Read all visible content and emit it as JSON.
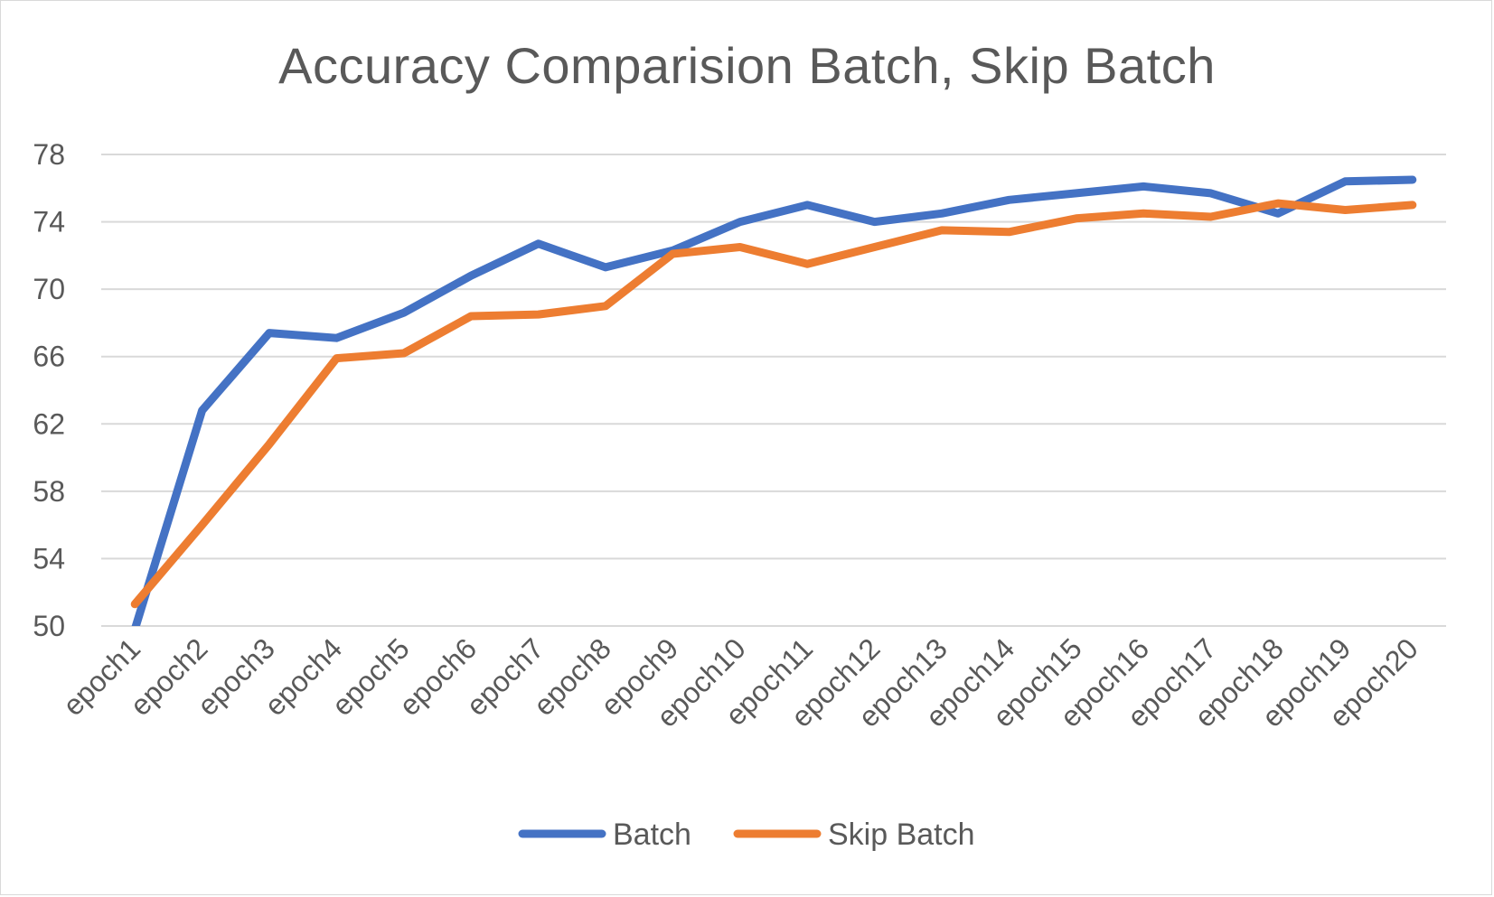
{
  "chart_data": {
    "type": "line",
    "title": "Accuracy Comparision Batch, Skip Batch",
    "xlabel": "",
    "ylabel": "",
    "categories": [
      "epoch1",
      "epoch2",
      "epoch3",
      "epoch4",
      "epoch5",
      "epoch6",
      "epoch7",
      "epoch8",
      "epoch9",
      "epoch10",
      "epoch11",
      "epoch12",
      "epoch13",
      "epoch14",
      "epoch15",
      "epoch16",
      "epoch17",
      "epoch18",
      "epoch19",
      "epoch20"
    ],
    "y_ticks": [
      50,
      54,
      58,
      62,
      66,
      70,
      74,
      78
    ],
    "ylim": [
      50,
      78
    ],
    "grid": true,
    "legend_position": "bottom",
    "series": [
      {
        "name": "Batch",
        "color": "#4472C4",
        "values": [
          49.8,
          62.8,
          67.4,
          67.1,
          68.6,
          70.8,
          72.7,
          71.3,
          72.3,
          74.0,
          75.0,
          74.0,
          74.5,
          75.3,
          75.7,
          76.1,
          75.7,
          74.5,
          76.4,
          76.5
        ]
      },
      {
        "name": "Skip Batch",
        "color": "#ED7D31",
        "values": [
          51.3,
          56.0,
          60.8,
          65.9,
          66.2,
          68.4,
          68.5,
          69.0,
          72.1,
          72.5,
          71.5,
          72.5,
          73.5,
          73.4,
          74.2,
          74.5,
          74.3,
          75.1,
          74.7,
          75.0
        ]
      }
    ]
  }
}
